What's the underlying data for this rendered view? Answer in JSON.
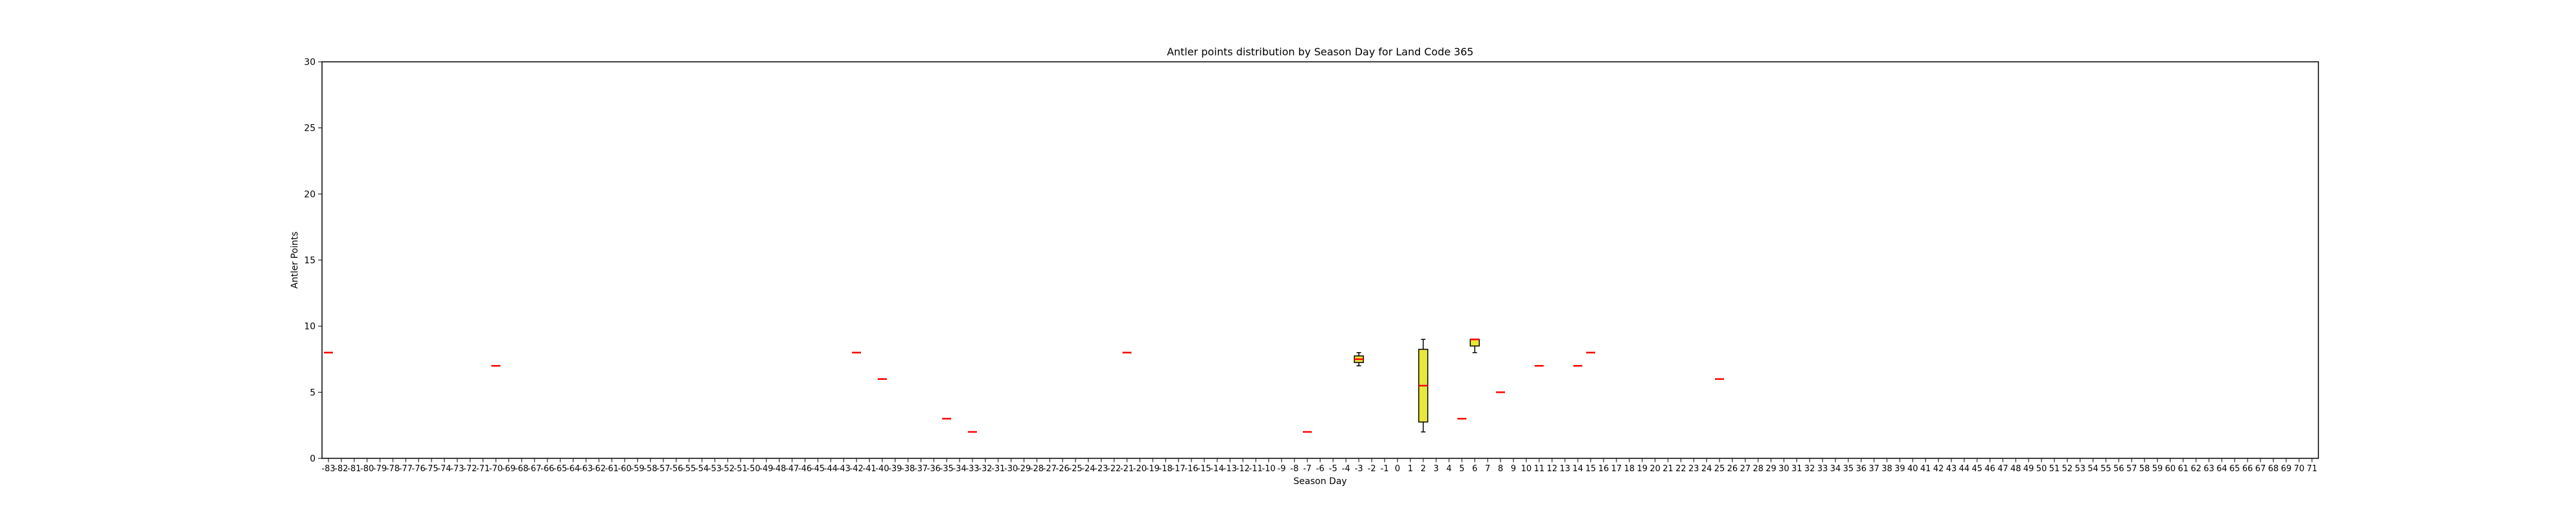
{
  "chart_data": {
    "type": "box",
    "title": "Antler points distribution by Season Day for Land Code 365",
    "xlabel": "Season Day",
    "ylabel": "Antler Points",
    "ylim": [
      0,
      30
    ],
    "yticks": [
      0,
      5,
      10,
      15,
      20,
      25,
      30
    ],
    "categories": [
      -83,
      -82,
      -81,
      -80,
      -79,
      -78,
      -77,
      -76,
      -75,
      -74,
      -73,
      -72,
      -71,
      -70,
      -69,
      -68,
      -67,
      -66,
      -65,
      -64,
      -63,
      -62,
      -61,
      -60,
      -59,
      -58,
      -57,
      -56,
      -55,
      -54,
      -53,
      -52,
      -51,
      -50,
      -49,
      -48,
      -47,
      -46,
      -45,
      -44,
      -43,
      -42,
      -41,
      -40,
      -39,
      -38,
      -37,
      -36,
      -35,
      -34,
      -33,
      -32,
      -31,
      -30,
      -29,
      -28,
      -27,
      -26,
      -25,
      -24,
      -23,
      -22,
      -21,
      -20,
      -19,
      -18,
      -17,
      -16,
      -15,
      -14,
      -13,
      -12,
      -11,
      -10,
      -9,
      -8,
      -7,
      -6,
      -5,
      -4,
      -3,
      -2,
      -1,
      0,
      1,
      2,
      3,
      4,
      5,
      6,
      7,
      8,
      9,
      10,
      11,
      12,
      13,
      14,
      15,
      16,
      17,
      18,
      19,
      20,
      21,
      22,
      23,
      24,
      25,
      26,
      27,
      28,
      29,
      30,
      31,
      32,
      33,
      34,
      35,
      36,
      37,
      38,
      39,
      40,
      41,
      42,
      43,
      44,
      45,
      46,
      47,
      48,
      49,
      50,
      51,
      52,
      53,
      54,
      55,
      56,
      57,
      58,
      59,
      60,
      61,
      62,
      63,
      64,
      65,
      66,
      67,
      68,
      69,
      70,
      71
    ],
    "boxes": [
      {
        "x": -83,
        "min": 8,
        "q1": 8,
        "median": 8,
        "q3": 8,
        "max": 8
      },
      {
        "x": -70,
        "min": 7,
        "q1": 7,
        "median": 7,
        "q3": 7,
        "max": 7
      },
      {
        "x": -42,
        "min": 8,
        "q1": 8,
        "median": 8,
        "q3": 8,
        "max": 8
      },
      {
        "x": -40,
        "min": 6,
        "q1": 6,
        "median": 6,
        "q3": 6,
        "max": 6
      },
      {
        "x": -35,
        "min": 3,
        "q1": 3,
        "median": 3,
        "q3": 3,
        "max": 3
      },
      {
        "x": -33,
        "min": 2,
        "q1": 2,
        "median": 2,
        "q3": 2,
        "max": 2
      },
      {
        "x": -21,
        "min": 8,
        "q1": 8,
        "median": 8,
        "q3": 8,
        "max": 8
      },
      {
        "x": -7,
        "min": 2,
        "q1": 2,
        "median": 2,
        "q3": 2,
        "max": 2
      },
      {
        "x": -3,
        "min": 7,
        "q1": 7.25,
        "median": 7.5,
        "q3": 7.75,
        "max": 8
      },
      {
        "x": 2,
        "min": 2,
        "q1": 2.75,
        "median": 5.5,
        "q3": 8.25,
        "max": 9
      },
      {
        "x": 5,
        "min": 3,
        "q1": 3,
        "median": 3,
        "q3": 3,
        "max": 3
      },
      {
        "x": 6,
        "min": 8,
        "q1": 8.5,
        "median": 9,
        "q3": 9,
        "max": 9
      },
      {
        "x": 8,
        "min": 5,
        "q1": 5,
        "median": 5,
        "q3": 5,
        "max": 5
      },
      {
        "x": 11,
        "min": 7,
        "q1": 7,
        "median": 7,
        "q3": 7,
        "max": 7
      },
      {
        "x": 14,
        "min": 7,
        "q1": 7,
        "median": 7,
        "q3": 7,
        "max": 7
      },
      {
        "x": 15,
        "min": 8,
        "q1": 8,
        "median": 8,
        "q3": 8,
        "max": 8
      },
      {
        "x": 25,
        "min": 6,
        "q1": 6,
        "median": 6,
        "q3": 6,
        "max": 6
      }
    ],
    "box_color": "#e8e83a",
    "median_color": "#ff0000",
    "edge_color": "#000000",
    "grid": false,
    "legend": "none"
  }
}
